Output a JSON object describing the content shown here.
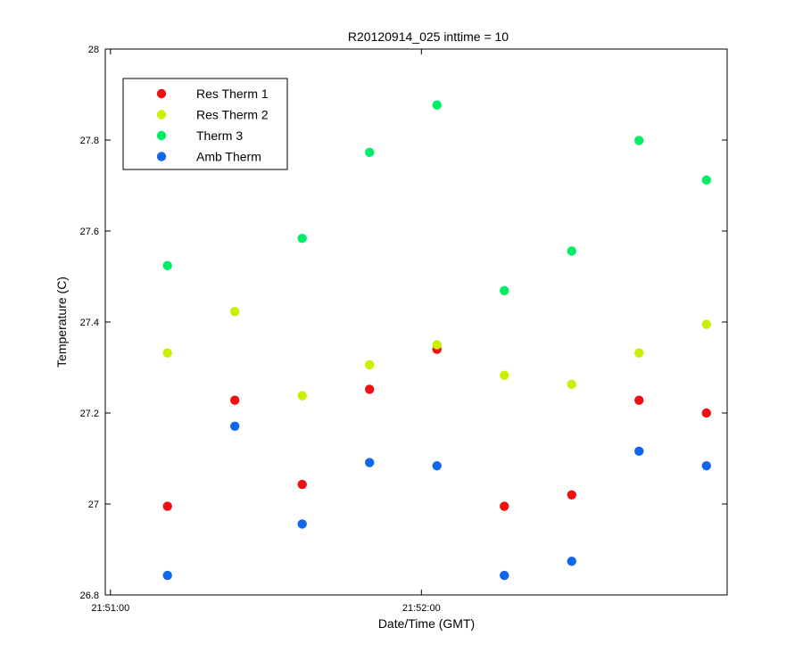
{
  "chart_data": {
    "type": "scatter",
    "title": "R20120914_025 inttime = 10",
    "xlabel": "Date/Time (GMT)",
    "ylabel": "Temperature (C)",
    "xlim": [
      "21:50:59",
      "21:52:59"
    ],
    "ylim": [
      26.8,
      28
    ],
    "x_ticks": [
      "21:51:00",
      "21:52:00"
    ],
    "y_ticks": [
      "26.8",
      "27",
      "27.2",
      "27.4",
      "27.6",
      "27.8",
      "28"
    ],
    "legend_position": "top-left",
    "grid": false,
    "x": [
      "21:51:11",
      "21:51:24",
      "21:51:37",
      "21:51:50",
      "21:52:03",
      "21:52:16",
      "21:52:29",
      "21:52:42",
      "21:52:55"
    ],
    "series": [
      {
        "name": "Res Therm 1",
        "color": "#ee1111",
        "values": [
          26.995,
          27.228,
          27.043,
          27.252,
          27.34,
          26.995,
          27.02,
          27.228,
          27.2
        ]
      },
      {
        "name": "Res Therm 2",
        "color": "#ccee00",
        "values": [
          27.332,
          27.423,
          27.238,
          27.306,
          27.35,
          27.283,
          27.263,
          27.332,
          27.395
        ]
      },
      {
        "name": "Therm 3",
        "color": "#00ee66",
        "values": [
          27.524,
          null,
          27.584,
          27.773,
          27.877,
          27.469,
          27.556,
          27.799,
          27.712
        ]
      },
      {
        "name": "Amb Therm",
        "color": "#1166ee",
        "values": [
          26.843,
          27.171,
          26.956,
          27.091,
          27.084,
          26.843,
          26.874,
          27.116,
          27.084
        ]
      }
    ]
  }
}
